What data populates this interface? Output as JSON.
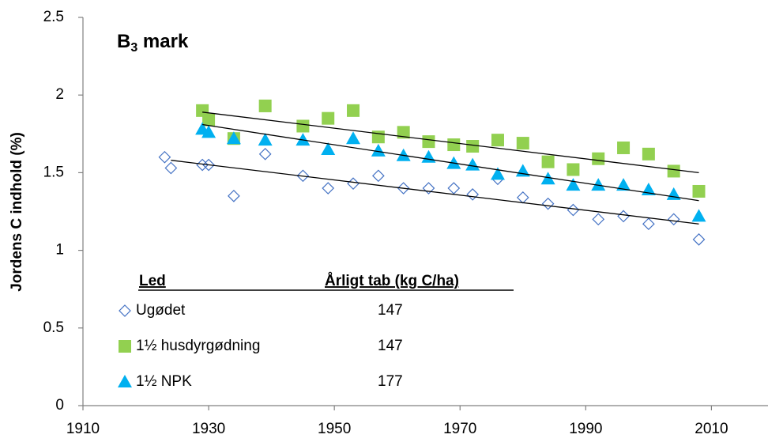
{
  "chart_data": {
    "type": "scatter",
    "title": {
      "main": "B",
      "sub": "3",
      "rest": " mark"
    },
    "y_label": "Jordens C indhold (%)",
    "legend_header": [
      "Led",
      "Årligt tab (kg C/ha)"
    ],
    "xlim": [
      1910,
      2019
    ],
    "ylim": [
      0,
      2.5
    ],
    "xticks": [
      1910,
      1930,
      1950,
      1970,
      1990,
      2010
    ],
    "yticks": [
      0,
      0.5,
      1,
      1.5,
      2,
      2.5
    ],
    "series": [
      {
        "name": "Ugødet",
        "annual_loss": "147",
        "color": "#4472c4",
        "marker": "diamond",
        "x": [
          1923,
          1924,
          1929,
          1930,
          1934,
          1939,
          1945,
          1949,
          1953,
          1957,
          1961,
          1965,
          1969,
          1972,
          1976,
          1980,
          1984,
          1988,
          1992,
          1996,
          2000,
          2004,
          2008
        ],
        "values": [
          1.6,
          1.53,
          1.55,
          1.55,
          1.35,
          1.62,
          1.48,
          1.4,
          1.43,
          1.48,
          1.4,
          1.4,
          1.4,
          1.36,
          1.46,
          1.34,
          1.3,
          1.26,
          1.2,
          1.22,
          1.17,
          1.2,
          1.07
        ],
        "trend": {
          "x": [
            1924,
            2008
          ],
          "values": [
            1.58,
            1.17
          ]
        }
      },
      {
        "name": "1½ husdyrgødning",
        "annual_loss": "147",
        "color": "#92d050",
        "marker": "square",
        "x": [
          1929,
          1930,
          1934,
          1939,
          1945,
          1949,
          1953,
          1957,
          1961,
          1965,
          1969,
          1972,
          1976,
          1980,
          1984,
          1988,
          1992,
          1996,
          2000,
          2004,
          2008
        ],
        "values": [
          1.9,
          1.84,
          1.72,
          1.93,
          1.8,
          1.85,
          1.9,
          1.73,
          1.76,
          1.7,
          1.68,
          1.67,
          1.71,
          1.69,
          1.57,
          1.52,
          1.59,
          1.66,
          1.62,
          1.51,
          1.38
        ],
        "trend": {
          "x": [
            1929,
            2008
          ],
          "values": [
            1.89,
            1.5
          ]
        }
      },
      {
        "name": "1½ NPK",
        "annual_loss": "177",
        "color": "#00b0f0",
        "marker": "triangle",
        "x": [
          1929,
          1930,
          1934,
          1939,
          1945,
          1949,
          1953,
          1957,
          1961,
          1965,
          1969,
          1972,
          1976,
          1980,
          1984,
          1988,
          1992,
          1996,
          2000,
          2004,
          2008
        ],
        "values": [
          1.78,
          1.76,
          1.72,
          1.71,
          1.71,
          1.65,
          1.72,
          1.64,
          1.61,
          1.6,
          1.56,
          1.55,
          1.49,
          1.51,
          1.46,
          1.42,
          1.42,
          1.42,
          1.39,
          1.36,
          1.22
        ],
        "trend": {
          "x": [
            1929,
            2008
          ],
          "values": [
            1.81,
            1.32
          ]
        }
      }
    ]
  }
}
